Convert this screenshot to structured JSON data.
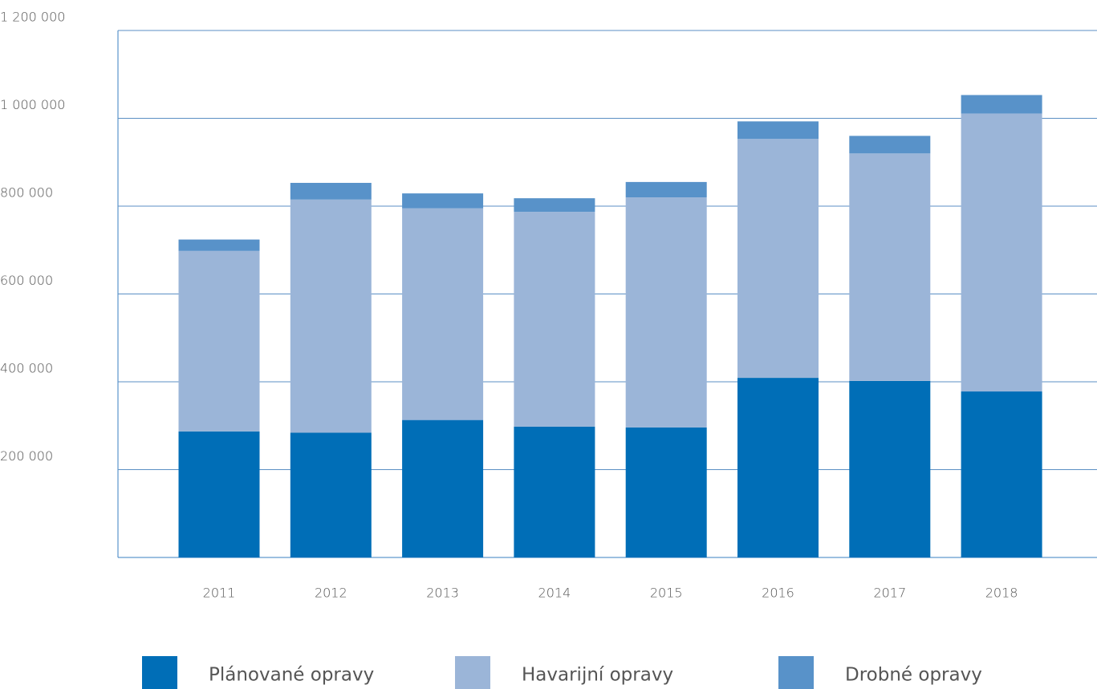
{
  "chart_data": {
    "type": "stacked_bar",
    "categories": [
      "2011",
      "2012",
      "2013",
      "2014",
      "2015",
      "2016",
      "2017",
      "2018"
    ],
    "series": [
      {
        "name": "Plánované opravy",
        "color": "#006eb7",
        "values": [
          287000,
          284000,
          313000,
          298000,
          296000,
          409000,
          402000,
          378000
        ]
      },
      {
        "name": "Havarijní opravy",
        "color": "#9bb5d8",
        "values": [
          411000,
          531000,
          482000,
          489000,
          524000,
          544000,
          518000,
          633000
        ]
      },
      {
        "name": "Drobné opravy",
        "color": "#5892c9",
        "values": [
          26000,
          38000,
          34000,
          31000,
          35000,
          40000,
          40000,
          42000
        ]
      }
    ],
    "ylim": [
      0,
      1200000
    ],
    "yticks": [
      {
        "value": 200000,
        "label": "200 000"
      },
      {
        "value": 400000,
        "label": "400 000"
      },
      {
        "value": 600000,
        "label": "600 000"
      },
      {
        "value": 800000,
        "label": "800 000"
      },
      {
        "value": 1000000,
        "label": "1 000 000"
      },
      {
        "value": 1200000,
        "label": "1 200 000"
      }
    ],
    "grid": true
  }
}
